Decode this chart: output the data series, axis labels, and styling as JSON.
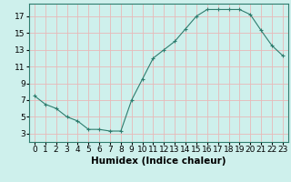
{
  "x": [
    0,
    1,
    2,
    3,
    4,
    5,
    6,
    7,
    8,
    9,
    10,
    11,
    12,
    13,
    14,
    15,
    16,
    17,
    18,
    19,
    20,
    21,
    22,
    23
  ],
  "y": [
    7.5,
    6.5,
    6.0,
    5.0,
    4.5,
    3.5,
    3.5,
    3.3,
    3.3,
    7.0,
    9.5,
    12.0,
    13.0,
    14.0,
    15.5,
    17.0,
    17.8,
    17.8,
    17.8,
    17.8,
    17.2,
    15.3,
    13.5,
    12.3
  ],
  "line_color": "#2e7d6e",
  "marker": "+",
  "bg_color": "#cef0ec",
  "grid_color": "#e8b8b8",
  "xlabel": "Humidex (Indice chaleur)",
  "xlim": [
    -0.5,
    23.5
  ],
  "ylim": [
    2.0,
    18.5
  ],
  "xticks": [
    0,
    1,
    2,
    3,
    4,
    5,
    6,
    7,
    8,
    9,
    10,
    11,
    12,
    13,
    14,
    15,
    16,
    17,
    18,
    19,
    20,
    21,
    22,
    23
  ],
  "yticks": [
    3,
    5,
    7,
    9,
    11,
    13,
    15,
    17
  ],
  "font_size": 6.5,
  "xlabel_fontsize": 7.5
}
